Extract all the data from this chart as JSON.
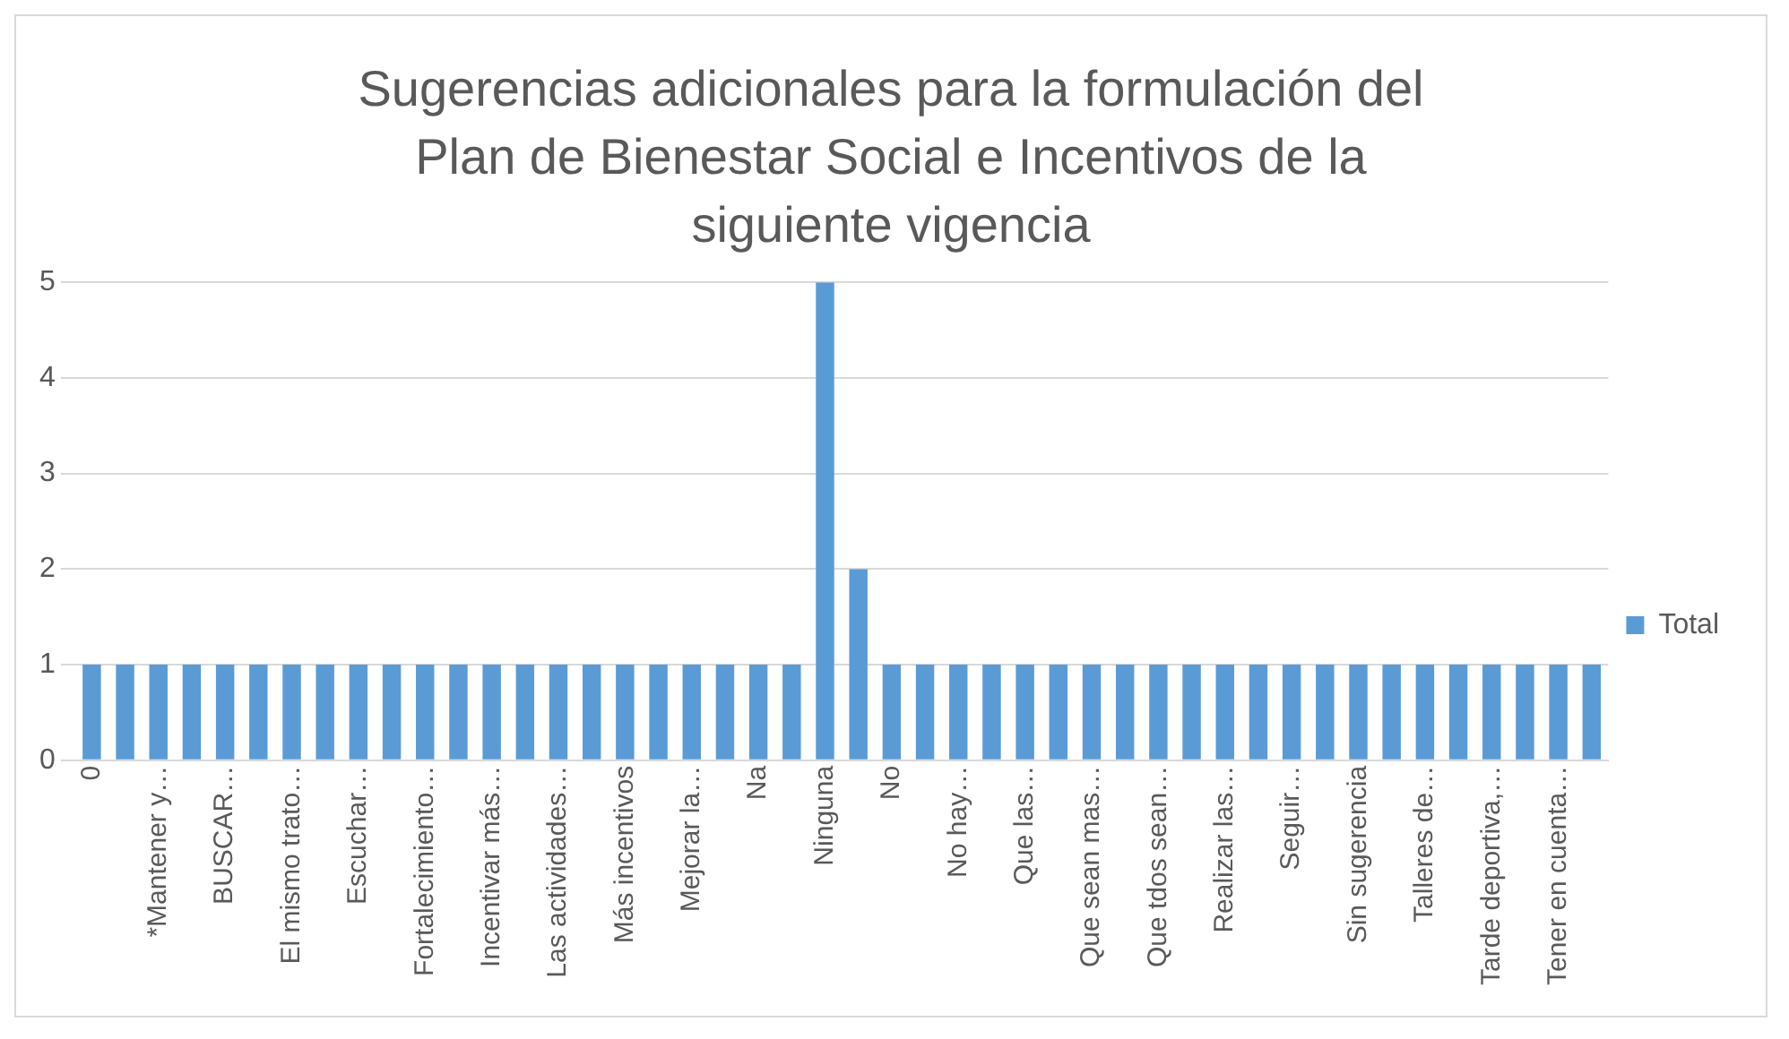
{
  "chart_data": {
    "type": "bar",
    "title": "Sugerencias adicionales para la formulación del Plan de Bienestar Social e Incentivos de la siguiente vigencia",
    "categories": [
      "0",
      null,
      "*Mantener y…",
      null,
      "BUSCAR…",
      null,
      "El mismo trato…",
      null,
      "Escuchar…",
      null,
      "Fortalecimiento…",
      null,
      "Incentivar más…",
      null,
      "Las actividades…",
      null,
      "Más incentivos",
      null,
      "Mejorar la…",
      null,
      "Na",
      null,
      "Ninguna",
      null,
      "No",
      null,
      "No hay…",
      null,
      "Que las…",
      null,
      "Que sean mas…",
      null,
      "Que tdos sean…",
      null,
      "Realizar las…",
      null,
      "Seguir…",
      null,
      "Sin sugerencia",
      null,
      "Talleres de…",
      null,
      "Tarde deportiva,…",
      null,
      "Tener en cuenta…",
      null
    ],
    "series": [
      {
        "name": "Total",
        "color": "#5b9bd5",
        "values": [
          1,
          1,
          1,
          1,
          1,
          1,
          1,
          1,
          1,
          1,
          1,
          1,
          1,
          1,
          1,
          1,
          1,
          1,
          1,
          1,
          1,
          1,
          5,
          2,
          1,
          1,
          1,
          1,
          1,
          1,
          1,
          1,
          1,
          1,
          1,
          1,
          1,
          1,
          1,
          1,
          1,
          1,
          1,
          1,
          1,
          1
        ]
      }
    ],
    "ylim": [
      0,
      5
    ],
    "yticks": [
      0,
      1,
      2,
      3,
      4,
      5
    ],
    "grid": "y",
    "legend": "right"
  }
}
